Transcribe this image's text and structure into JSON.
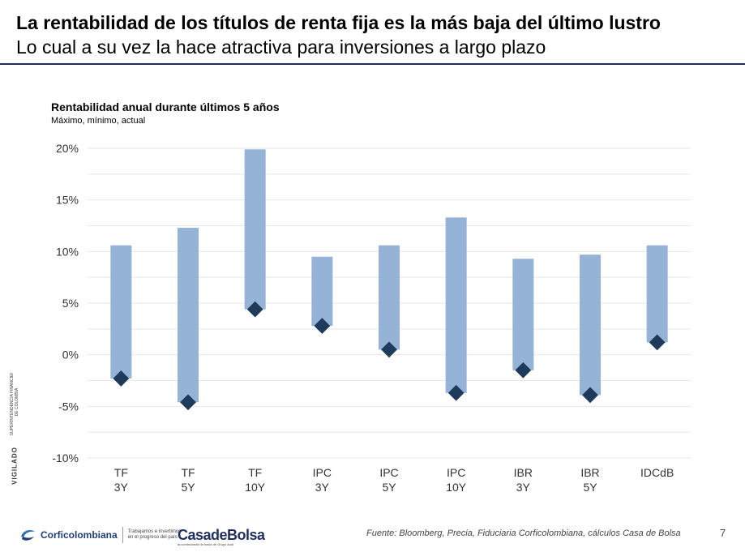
{
  "slide": {
    "title": "La rentabilidad de los títulos de renta fija es la más baja del último lustro",
    "subtitle": "Lo cual a su vez la hace atractiva para inversiones a largo plazo",
    "source": "Fuente: Bloomberg, Precia, Fiduciaria Corficolombiana, cálculos Casa de Bolsa",
    "page_number": "7"
  },
  "footer": {
    "brand": "Corficolombiana",
    "tagline_1": "Trabajamos e invertimos",
    "tagline_2": "en el progreso del país",
    "casa_name": "CasadeBolsa",
    "casa_sub": "la comisionista de bolsa de Grupo Aval",
    "vigilado": "VIGILADO",
    "vigilado_sub": "SUPERINTENDENCIA FINANCIERA DE COLOMBIA"
  },
  "colors": {
    "bar": "#95b3d7",
    "marker": "#1f3b5c",
    "title_rule": "#1f2f5e",
    "grid": "#e6e6e6"
  },
  "chart_data": {
    "type": "bar",
    "title": "Rentabilidad anual durante últimos 5 años",
    "subtitle": "Máximo, mínimo, actual",
    "categories": [
      [
        "TF",
        "3Y"
      ],
      [
        "TF",
        "5Y"
      ],
      [
        "TF",
        "10Y"
      ],
      [
        "IPC",
        "3Y"
      ],
      [
        "IPC",
        "5Y"
      ],
      [
        "IPC",
        "10Y"
      ],
      [
        "IBR",
        "3Y"
      ],
      [
        "IBR",
        "5Y"
      ],
      [
        "IDCdB",
        ""
      ]
    ],
    "series": [
      {
        "values_max": [
          10.6,
          12.3,
          19.9,
          9.5,
          10.6,
          13.3,
          9.3,
          9.7,
          10.6
        ]
      },
      {
        "values_min": [
          -2.3,
          -4.6,
          4.4,
          2.8,
          0.5,
          -3.7,
          -1.5,
          -3.9,
          1.2
        ]
      },
      {
        "values_actual": [
          -2.3,
          -4.6,
          4.4,
          2.8,
          0.5,
          -3.7,
          -1.5,
          -3.9,
          1.2
        ]
      }
    ],
    "ylim": [
      -10,
      20
    ],
    "yticks": [
      20,
      15,
      10,
      5,
      0,
      -5,
      -10
    ],
    "ytick_labels": [
      "20%",
      "15%",
      "10%",
      "5%",
      "0%",
      "-5%",
      "-10%"
    ],
    "grid": true,
    "xlabel": "",
    "ylabel": ""
  }
}
